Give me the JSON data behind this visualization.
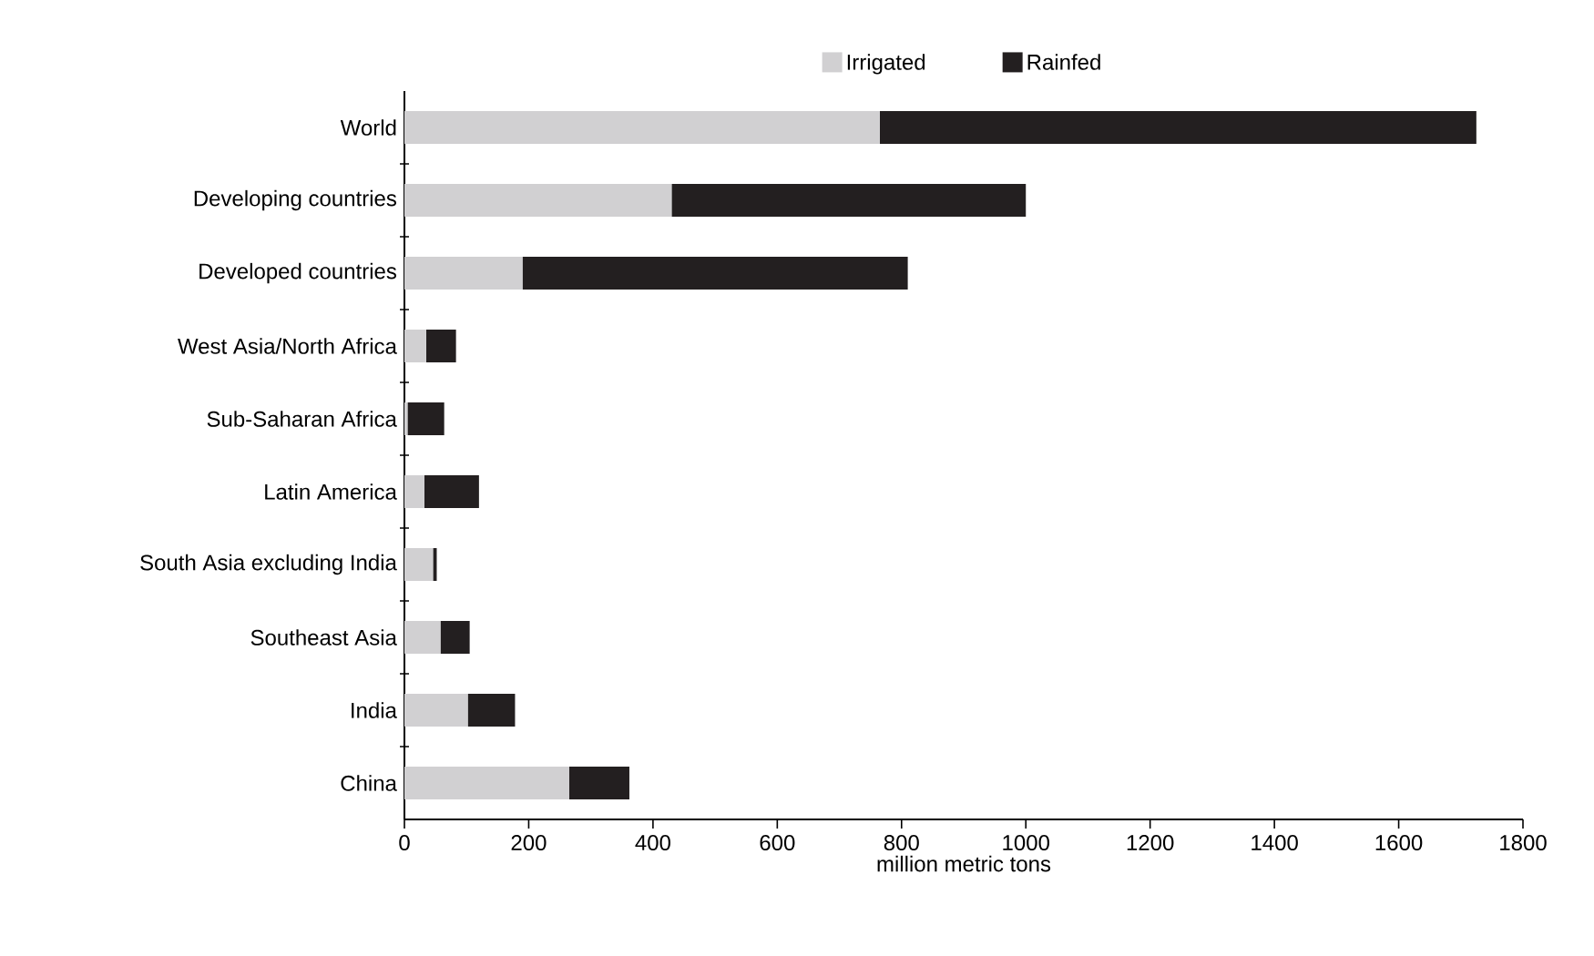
{
  "chart_data": {
    "type": "bar",
    "orientation": "horizontal",
    "stacked": true,
    "xlabel": "million metric tons",
    "categories": [
      "World",
      "Developing countries",
      "Developed countries",
      "West Asia/North Africa",
      "Sub-Saharan Africa",
      "Latin America",
      "South Asia excluding India",
      "Southeast Asia",
      "India",
      "China"
    ],
    "series": [
      {
        "name": "Irrigated",
        "color": "#d1d0d2",
        "values": [
          765,
          430,
          190,
          35,
          5,
          32,
          46,
          58,
          102,
          265
        ]
      },
      {
        "name": "Rainfed",
        "color": "#231f20",
        "values": [
          960,
          570,
          620,
          48,
          59,
          88,
          6,
          47,
          76,
          97
        ]
      }
    ],
    "xlim": [
      0,
      1800
    ],
    "xticks": [
      0,
      200,
      400,
      600,
      800,
      1000,
      1200,
      1400,
      1600,
      1800
    ],
    "legend": "top",
    "grid": false
  }
}
